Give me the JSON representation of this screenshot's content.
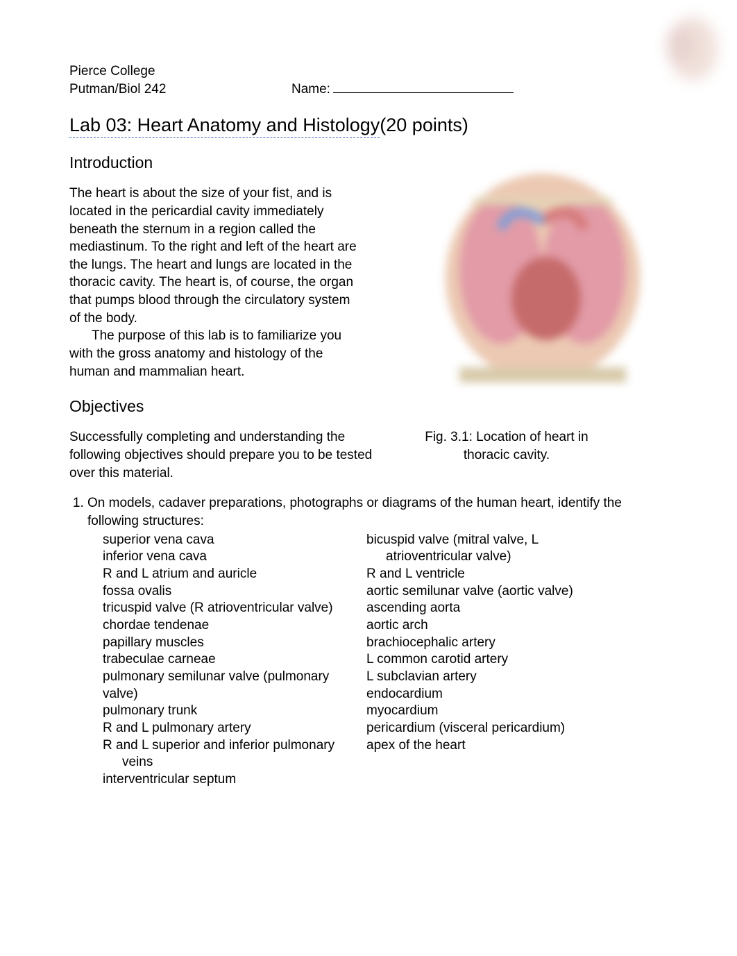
{
  "header": {
    "college": "Pierce College",
    "course": "Putman/Biol 242",
    "name_label": "Name:"
  },
  "title": {
    "main": "Lab 03: Heart Anatomy and Histology",
    "points": "(20 points)"
  },
  "intro": {
    "heading": "Introduction",
    "p1": "The heart is about the size of your fist, and is located in the pericardial cavity immediately beneath the sternum in a region called the mediastinum. To the right and left of the heart are the lungs. The heart and lungs are located in the thoracic cavity. The heart is, of course, the organ that pumps blood through the circulatory system of the body.",
    "p2": "The purpose of this lab is to familiarize you with the gross anatomy and histology of the human and mammalian heart."
  },
  "figure": {
    "caption_l1": "Fig. 3.1: Location of heart in",
    "caption_l2": "thoracic cavity.",
    "torso_skin": "#e6b89a",
    "lung_color": "#d97a8a",
    "heart_color": "#b33a3a",
    "vessel_blue": "#5a7fc9",
    "vessel_red": "#c94f4f",
    "bone_color": "#d8c89e"
  },
  "objectives": {
    "heading": "Objectives",
    "lead_a": "Successfully completing and understanding the following objectives should prepare you to be tested over this material.",
    "item1": "On models, cadaver preparations, photographs or diagrams of the human heart, identify the following structures:"
  },
  "structures": {
    "col1": [
      "superior vena cava",
      "inferior vena cava",
      "R and L atrium and auricle",
      "fossa ovalis",
      "tricuspid valve (R atrioventricular valve)",
      "chordae tendenae",
      "papillary muscles",
      "trabeculae carneae",
      "pulmonary semilunar valve (pulmonary valve)",
      "pulmonary trunk",
      "R and L pulmonary artery",
      "R and L superior and inferior pulmonary",
      "veins",
      "interventricular septum"
    ],
    "col1_sub_index": 12,
    "col2": [
      "bicuspid valve (mitral valve, L",
      "atrioventricular valve)",
      "R and L ventricle",
      "aortic semilunar valve (aortic valve)",
      "ascending aorta",
      "aortic arch",
      "brachiocephalic artery",
      "L common carotid artery",
      "L subclavian artery",
      "endocardium",
      "myocardium",
      "pericardium (visceral pericardium)",
      "apex of the heart"
    ],
    "col2_sub_index": 1
  },
  "style": {
    "body_font_size_pt": 14,
    "title_font_size_pt": 20,
    "section_font_size_pt": 17,
    "text_color": "#000000",
    "background_color": "#ffffff",
    "accent_underline": "#3a64bf"
  }
}
